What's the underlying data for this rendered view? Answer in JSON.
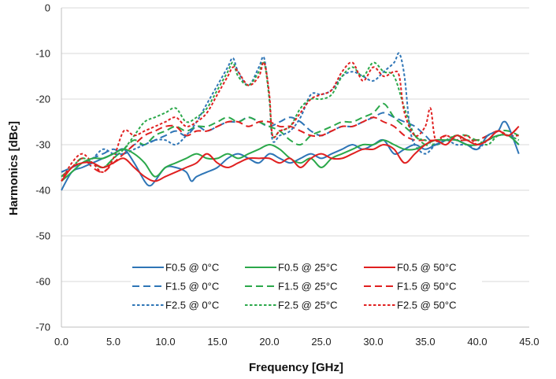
{
  "chart_data": {
    "type": "line",
    "title": "",
    "xlabel": "Frequency [GHz]",
    "ylabel": "Harmonics [dBc]",
    "xlim": [
      0,
      45
    ],
    "ylim": [
      -70,
      0
    ],
    "xticks": [
      0,
      5,
      10,
      15,
      20,
      25,
      30,
      35,
      40,
      45
    ],
    "xtick_labels": [
      "0.0",
      "5.0",
      "10.0",
      "15.0",
      "20.0",
      "25.0",
      "30.0",
      "35.0",
      "40.0",
      "45.0"
    ],
    "yticks": [
      0,
      -10,
      -20,
      -30,
      -40,
      -50,
      -60,
      -70
    ],
    "ytick_labels": [
      "0",
      "-10",
      "-20",
      "-30",
      "-40",
      "-50",
      "-60",
      "-70"
    ],
    "grid": "y-major",
    "legend_position": "bottom-center",
    "series": [
      {
        "name": "F0.5 @ 0°C",
        "color": "#2E75B6",
        "dash": "solid",
        "x": [
          0,
          1,
          2,
          3,
          4,
          5,
          6,
          7,
          8,
          8.5,
          9,
          10,
          11,
          12,
          12.5,
          13,
          14,
          15,
          16,
          17,
          18,
          19,
          20,
          21,
          22,
          23,
          24,
          25,
          26,
          27,
          28,
          29,
          30,
          31,
          32,
          33,
          34,
          35,
          36,
          37,
          38,
          39,
          40,
          41,
          42,
          42.5,
          43,
          44
        ],
        "y": [
          -40,
          -36,
          -35,
          -34,
          -33,
          -32,
          -31,
          -34,
          -38,
          -39,
          -38,
          -35,
          -35,
          -36,
          -38,
          -37,
          -36,
          -35,
          -33,
          -32,
          -33,
          -34,
          -32,
          -33,
          -34,
          -33,
          -32,
          -33,
          -32,
          -31,
          -30,
          -31,
          -30,
          -29,
          -32,
          -31,
          -30,
          -31,
          -30,
          -29,
          -29,
          -30,
          -31,
          -28,
          -27,
          -25,
          -26,
          -32
        ]
      },
      {
        "name": "F0.5 @ 25°C",
        "color": "#2BA84A",
        "dash": "solid",
        "x": [
          0,
          1,
          2,
          3,
          4,
          5,
          6,
          7,
          8,
          9,
          10,
          11,
          12,
          13,
          14,
          15,
          16,
          17,
          18,
          19,
          20,
          21,
          22,
          23,
          24,
          25,
          26,
          27,
          28,
          29,
          30,
          31,
          32,
          33,
          34,
          35,
          36,
          37,
          38,
          39,
          40,
          41,
          42,
          43,
          44
        ],
        "y": [
          -38,
          -36,
          -34,
          -33,
          -33,
          -32,
          -31,
          -32,
          -34,
          -37,
          -35,
          -34,
          -33,
          -32,
          -33,
          -33,
          -32,
          -33,
          -32,
          -31,
          -30,
          -31,
          -33,
          -34,
          -33,
          -35,
          -33,
          -32,
          -31,
          -30,
          -30,
          -29,
          -30,
          -31,
          -31,
          -30,
          -29,
          -29,
          -29,
          -30,
          -30,
          -29,
          -28,
          -28,
          -30
        ]
      },
      {
        "name": "F0.5 @ 50°C",
        "color": "#E02020",
        "dash": "solid",
        "x": [
          0,
          1,
          2,
          3,
          4,
          5,
          6,
          7,
          8,
          9,
          10,
          11,
          12,
          13,
          14,
          15,
          16,
          17,
          18,
          19,
          20,
          21,
          22,
          23,
          24,
          25,
          26,
          27,
          28,
          29,
          30,
          31,
          32,
          33,
          34,
          35,
          36,
          37,
          38,
          39,
          40,
          41,
          42,
          43,
          44
        ],
        "y": [
          -38,
          -35,
          -34,
          -34,
          -35,
          -34,
          -33,
          -35,
          -37,
          -38,
          -37,
          -36,
          -35,
          -34,
          -32,
          -34,
          -35,
          -34,
          -33,
          -33,
          -33,
          -34,
          -33,
          -35,
          -33,
          -32,
          -33,
          -33,
          -32,
          -31,
          -31,
          -30,
          -31,
          -34,
          -32,
          -30,
          -29,
          -30,
          -28,
          -29,
          -30,
          -29,
          -27,
          -28,
          -26
        ]
      },
      {
        "name": "F1.5 @ 0°C",
        "color": "#2E75B6",
        "dash": "long",
        "x": [
          0,
          1,
          2,
          3,
          4,
          5,
          6,
          7,
          8,
          9,
          10,
          11,
          12,
          13,
          14,
          15,
          16,
          17,
          18,
          19,
          20,
          21,
          22,
          23,
          24,
          25,
          26,
          27,
          28,
          29,
          30,
          31,
          32,
          33,
          34,
          35,
          36,
          37,
          38,
          39,
          40,
          41,
          42,
          43,
          44
        ],
        "y": [
          -36,
          -35,
          -34,
          -33,
          -32,
          -31,
          -32,
          -30,
          -30,
          -29,
          -28,
          -27,
          -28,
          -26,
          -27,
          -26,
          -25,
          -25,
          -24,
          -25,
          -26,
          -25,
          -24,
          -25,
          -27,
          -28,
          -27,
          -26,
          -26,
          -25,
          -24,
          -23,
          -24,
          -25,
          -26,
          -28,
          -30,
          -29,
          -29,
          -30,
          -30,
          -29,
          -28,
          -28,
          -30
        ]
      },
      {
        "name": "F1.5 @ 25°C",
        "color": "#2BA84A",
        "dash": "long",
        "x": [
          0,
          1,
          2,
          3,
          4,
          5,
          6,
          7,
          8,
          9,
          10,
          11,
          12,
          13,
          14,
          15,
          16,
          17,
          18,
          19,
          20,
          21,
          22,
          23,
          24,
          25,
          26,
          27,
          28,
          29,
          30,
          31,
          32,
          33,
          34,
          35,
          36,
          37,
          38,
          39,
          40,
          41,
          42,
          43,
          44
        ],
        "y": [
          -37,
          -35,
          -33,
          -34,
          -35,
          -33,
          -31,
          -29,
          -30,
          -28,
          -27,
          -26,
          -27,
          -26,
          -26,
          -25,
          -24,
          -25,
          -24,
          -25,
          -26,
          -27,
          -29,
          -30,
          -28,
          -27,
          -26,
          -25,
          -25,
          -24,
          -23,
          -21,
          -24,
          -26,
          -28,
          -30,
          -30,
          -29,
          -28,
          -28,
          -29,
          -28,
          -27,
          -27,
          -28
        ]
      },
      {
        "name": "F1.5 @ 50°C",
        "color": "#E02020",
        "dash": "long",
        "x": [
          0,
          1,
          2,
          3,
          4,
          5,
          6,
          7,
          8,
          9,
          10,
          11,
          12,
          13,
          14,
          15,
          16,
          17,
          18,
          19,
          20,
          21,
          22,
          23,
          24,
          25,
          26,
          27,
          28,
          29,
          30,
          31,
          32,
          33,
          34,
          35,
          36,
          37,
          38,
          39,
          40,
          41,
          42,
          43,
          44
        ],
        "y": [
          -37,
          -35,
          -33,
          -35,
          -36,
          -34,
          -32,
          -30,
          -28,
          -27,
          -26,
          -26,
          -28,
          -27,
          -27,
          -26,
          -25,
          -25,
          -26,
          -25,
          -25,
          -26,
          -26,
          -27,
          -28,
          -28,
          -27,
          -26,
          -26,
          -25,
          -24,
          -25,
          -26,
          -28,
          -29,
          -29,
          -29,
          -28,
          -29,
          -29,
          -29,
          -28,
          -27,
          -28,
          -26
        ]
      },
      {
        "name": "F2.5 @ 0°C",
        "color": "#2E75B6",
        "dash": "short",
        "x": [
          0,
          1,
          2,
          3,
          4,
          5,
          6,
          7,
          8,
          9,
          10,
          11,
          12,
          13,
          14,
          15,
          16,
          16.5,
          17,
          18,
          19,
          19.5,
          20,
          20.3,
          21,
          22,
          23,
          24,
          25,
          26,
          27,
          28,
          29,
          30,
          31,
          32,
          32.5,
          33,
          33.5,
          34,
          35,
          36,
          37,
          38,
          39,
          40,
          41,
          42,
          43,
          44
        ],
        "y": [
          -36,
          -35,
          -34,
          -33,
          -31,
          -32,
          -32,
          -31,
          -30,
          -29,
          -29,
          -30,
          -28,
          -25,
          -21,
          -17,
          -13,
          -11,
          -14,
          -17,
          -13,
          -11,
          -20,
          -29,
          -28,
          -27,
          -24,
          -19,
          -19,
          -18,
          -15,
          -14,
          -15,
          -16,
          -14,
          -12,
          -10,
          -15,
          -26,
          -30,
          -32,
          -30,
          -29,
          -30,
          -30,
          -31,
          -29,
          -28,
          -28,
          -30
        ]
      },
      {
        "name": "F2.5 @ 25°C",
        "color": "#2BA84A",
        "dash": "short",
        "x": [
          0,
          1,
          2,
          3,
          4,
          5,
          6,
          7,
          8,
          9,
          10,
          11,
          12,
          13,
          14,
          15,
          16,
          16.5,
          17,
          18,
          19,
          19.5,
          20,
          20.3,
          21,
          22,
          23,
          24,
          25,
          26,
          27,
          28,
          29,
          30,
          31,
          32,
          33,
          34,
          35,
          36,
          37,
          38,
          39,
          40,
          41,
          42,
          43,
          44
        ],
        "y": [
          -37,
          -35,
          -33,
          -34,
          -35,
          -33,
          -31,
          -28,
          -25,
          -24,
          -23,
          -22,
          -25,
          -24,
          -22,
          -18,
          -14,
          -12,
          -15,
          -17,
          -14,
          -12,
          -20,
          -28,
          -27,
          -26,
          -22,
          -20,
          -20,
          -19,
          -15,
          -13,
          -15,
          -12,
          -14,
          -15,
          -22,
          -28,
          -29,
          -30,
          -29,
          -28,
          -29,
          -29,
          -30,
          -28,
          -28,
          -29
        ]
      },
      {
        "name": "F2.5 @ 50°C",
        "color": "#E02020",
        "dash": "short",
        "x": [
          0,
          1,
          2,
          3,
          4,
          5,
          6,
          7,
          8,
          9,
          10,
          11,
          12,
          13,
          14,
          15,
          16,
          16.5,
          17,
          18,
          19,
          19.5,
          20,
          20.3,
          21,
          22,
          23,
          24,
          25,
          26,
          27,
          28,
          29,
          30,
          31,
          32,
          32.5,
          33,
          34,
          35,
          35.5,
          36,
          37,
          38,
          39,
          40,
          41,
          42,
          43,
          44
        ],
        "y": [
          -38,
          -34,
          -32,
          -34,
          -36,
          -33,
          -27,
          -28,
          -27,
          -26,
          -25,
          -24,
          -26,
          -25,
          -23,
          -19,
          -15,
          -13,
          -14,
          -17,
          -15,
          -12,
          -19,
          -28,
          -27,
          -26,
          -23,
          -20,
          -19,
          -18,
          -14,
          -12,
          -16,
          -13,
          -15,
          -14,
          -15,
          -23,
          -28,
          -26,
          -22,
          -29,
          -28,
          -29,
          -28,
          -30,
          -29,
          -27,
          -28,
          -28
        ]
      }
    ]
  }
}
